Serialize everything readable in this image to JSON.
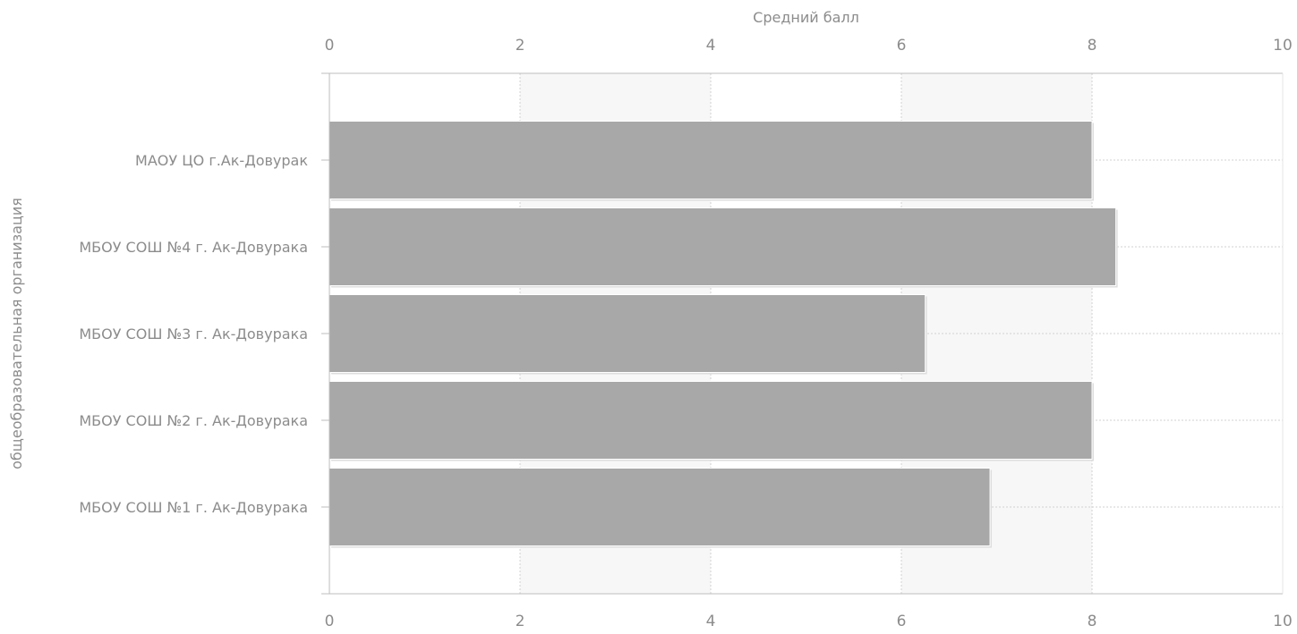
{
  "chart_data": {
    "type": "bar",
    "orientation": "horizontal",
    "xlabel": "Средний балл",
    "ylabel": "общеобразовательная организация",
    "xlim": [
      0,
      10
    ],
    "xticks": [
      "0",
      "2",
      "4",
      "6",
      "8",
      "10"
    ],
    "categories": [
      "МАОУ ЦО г.Ак-Довурак",
      "МБОУ СОШ №4 г. Ак-Довурака",
      "МБОУ СОШ №3 г. Ак-Довурака",
      "МБОУ СОШ №2 г. Ак-Довурака",
      "МБОУ СОШ №1 г. Ак-Довурака"
    ],
    "values": [
      8.0,
      8.25,
      6.25,
      8.0,
      6.93
    ],
    "grid": true,
    "legend": "none",
    "colors": {
      "bar": "#a8a8a8",
      "band": "#f7f7f7",
      "text": "#8c8c8c",
      "axis": "#bcbcbc",
      "grid": "#d2d2d2"
    }
  }
}
